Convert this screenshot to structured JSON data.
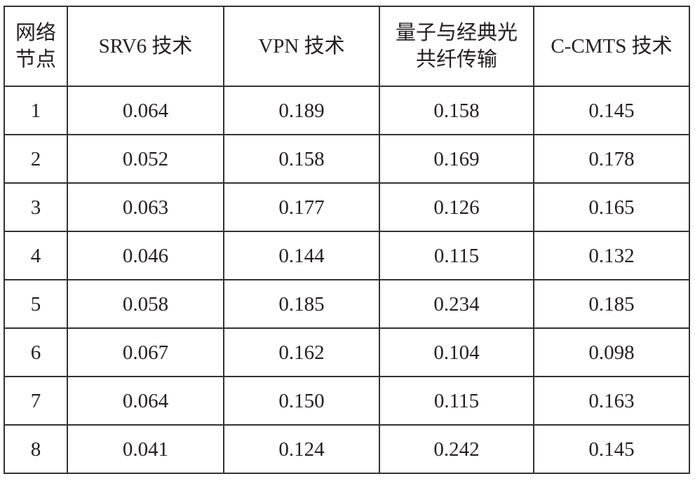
{
  "table": {
    "header": [
      "网络节点",
      "SRV6 技术",
      "VPN 技术",
      "量子与经典光共纤传输",
      "C-CMTS 技术"
    ],
    "rows": [
      [
        "1",
        "0.064",
        "0.189",
        "0.158",
        "0.145"
      ],
      [
        "2",
        "0.052",
        "0.158",
        "0.169",
        "0.178"
      ],
      [
        "3",
        "0.063",
        "0.177",
        "0.126",
        "0.165"
      ],
      [
        "4",
        "0.046",
        "0.144",
        "0.115",
        "0.132"
      ],
      [
        "5",
        "0.058",
        "0.185",
        "0.234",
        "0.185"
      ],
      [
        "6",
        "0.067",
        "0.162",
        "0.104",
        "0.098"
      ],
      [
        "7",
        "0.064",
        "0.150",
        "0.115",
        "0.163"
      ],
      [
        "8",
        "0.041",
        "0.124",
        "0.242",
        "0.145"
      ]
    ]
  }
}
